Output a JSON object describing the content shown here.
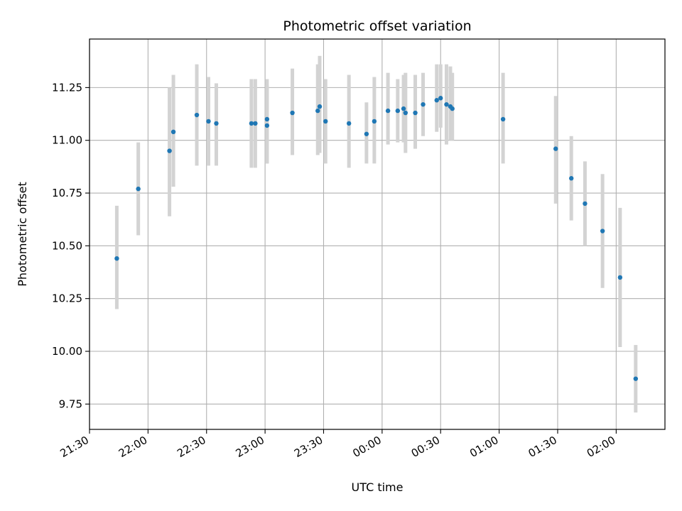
{
  "chart_data": {
    "type": "scatter",
    "title": "Photometric offset variation",
    "xlabel": "UTC time",
    "ylabel": "Photometric offset",
    "xlim": [
      "21:30",
      "02:25"
    ],
    "ylim": [
      9.63,
      11.48
    ],
    "xticks": [
      "21:30",
      "22:00",
      "22:30",
      "23:00",
      "23:30",
      "00:00",
      "00:30",
      "01:00",
      "01:30",
      "02:00"
    ],
    "yticks": [
      "9.75",
      "10.00",
      "10.25",
      "10.50",
      "10.75",
      "11.00",
      "11.25"
    ],
    "grid": true,
    "point_color": "#1f77b4",
    "errorbar_color": "#d3d3d3",
    "points": [
      {
        "t": "21:44",
        "y": 10.44,
        "lo": 10.2,
        "hi": 10.69
      },
      {
        "t": "21:55",
        "y": 10.77,
        "lo": 10.55,
        "hi": 10.99
      },
      {
        "t": "22:11",
        "y": 10.95,
        "lo": 10.64,
        "hi": 11.25
      },
      {
        "t": "22:13",
        "y": 11.04,
        "lo": 10.78,
        "hi": 11.31
      },
      {
        "t": "22:25",
        "y": 11.12,
        "lo": 10.88,
        "hi": 11.36
      },
      {
        "t": "22:31",
        "y": 11.09,
        "lo": 10.88,
        "hi": 11.3
      },
      {
        "t": "22:35",
        "y": 11.08,
        "lo": 10.88,
        "hi": 11.27
      },
      {
        "t": "22:53",
        "y": 11.08,
        "lo": 10.87,
        "hi": 11.29
      },
      {
        "t": "22:55",
        "y": 11.08,
        "lo": 10.87,
        "hi": 11.29
      },
      {
        "t": "23:01",
        "y": 11.1,
        "lo": 10.89,
        "hi": 11.29
      },
      {
        "t": "23:01",
        "y": 11.07,
        "lo": 10.89,
        "hi": 11.26
      },
      {
        "t": "23:14",
        "y": 11.13,
        "lo": 10.93,
        "hi": 11.34
      },
      {
        "t": "23:27",
        "y": 11.14,
        "lo": 10.93,
        "hi": 11.36
      },
      {
        "t": "23:28",
        "y": 11.16,
        "lo": 10.94,
        "hi": 11.4
      },
      {
        "t": "23:31",
        "y": 11.09,
        "lo": 10.89,
        "hi": 11.29
      },
      {
        "t": "23:43",
        "y": 11.08,
        "lo": 10.87,
        "hi": 11.31
      },
      {
        "t": "23:52",
        "y": 11.03,
        "lo": 10.89,
        "hi": 11.18
      },
      {
        "t": "23:56",
        "y": 11.09,
        "lo": 10.89,
        "hi": 11.3
      },
      {
        "t": "00:03",
        "y": 11.14,
        "lo": 10.98,
        "hi": 11.32
      },
      {
        "t": "00:08",
        "y": 11.14,
        "lo": 10.99,
        "hi": 11.29
      },
      {
        "t": "00:11",
        "y": 11.15,
        "lo": 10.99,
        "hi": 11.31
      },
      {
        "t": "00:12",
        "y": 11.13,
        "lo": 10.94,
        "hi": 11.32
      },
      {
        "t": "00:17",
        "y": 11.13,
        "lo": 10.96,
        "hi": 11.31
      },
      {
        "t": "00:21",
        "y": 11.17,
        "lo": 11.02,
        "hi": 11.32
      },
      {
        "t": "00:28",
        "y": 11.19,
        "lo": 11.04,
        "hi": 11.36
      },
      {
        "t": "00:30",
        "y": 11.2,
        "lo": 11.06,
        "hi": 11.36
      },
      {
        "t": "00:33",
        "y": 11.17,
        "lo": 10.98,
        "hi": 11.36
      },
      {
        "t": "00:35",
        "y": 11.16,
        "lo": 11.0,
        "hi": 11.35
      },
      {
        "t": "00:36",
        "y": 11.15,
        "lo": 11.0,
        "hi": 11.32
      },
      {
        "t": "01:02",
        "y": 11.1,
        "lo": 10.89,
        "hi": 11.32
      },
      {
        "t": "01:29",
        "y": 10.96,
        "lo": 10.7,
        "hi": 11.21
      },
      {
        "t": "01:37",
        "y": 10.82,
        "lo": 10.62,
        "hi": 11.02
      },
      {
        "t": "01:44",
        "y": 10.7,
        "lo": 10.5,
        "hi": 10.9
      },
      {
        "t": "01:53",
        "y": 10.57,
        "lo": 10.3,
        "hi": 10.84
      },
      {
        "t": "02:02",
        "y": 10.35,
        "lo": 10.02,
        "hi": 10.68
      },
      {
        "t": "02:10",
        "y": 9.87,
        "lo": 9.71,
        "hi": 10.03
      }
    ]
  }
}
